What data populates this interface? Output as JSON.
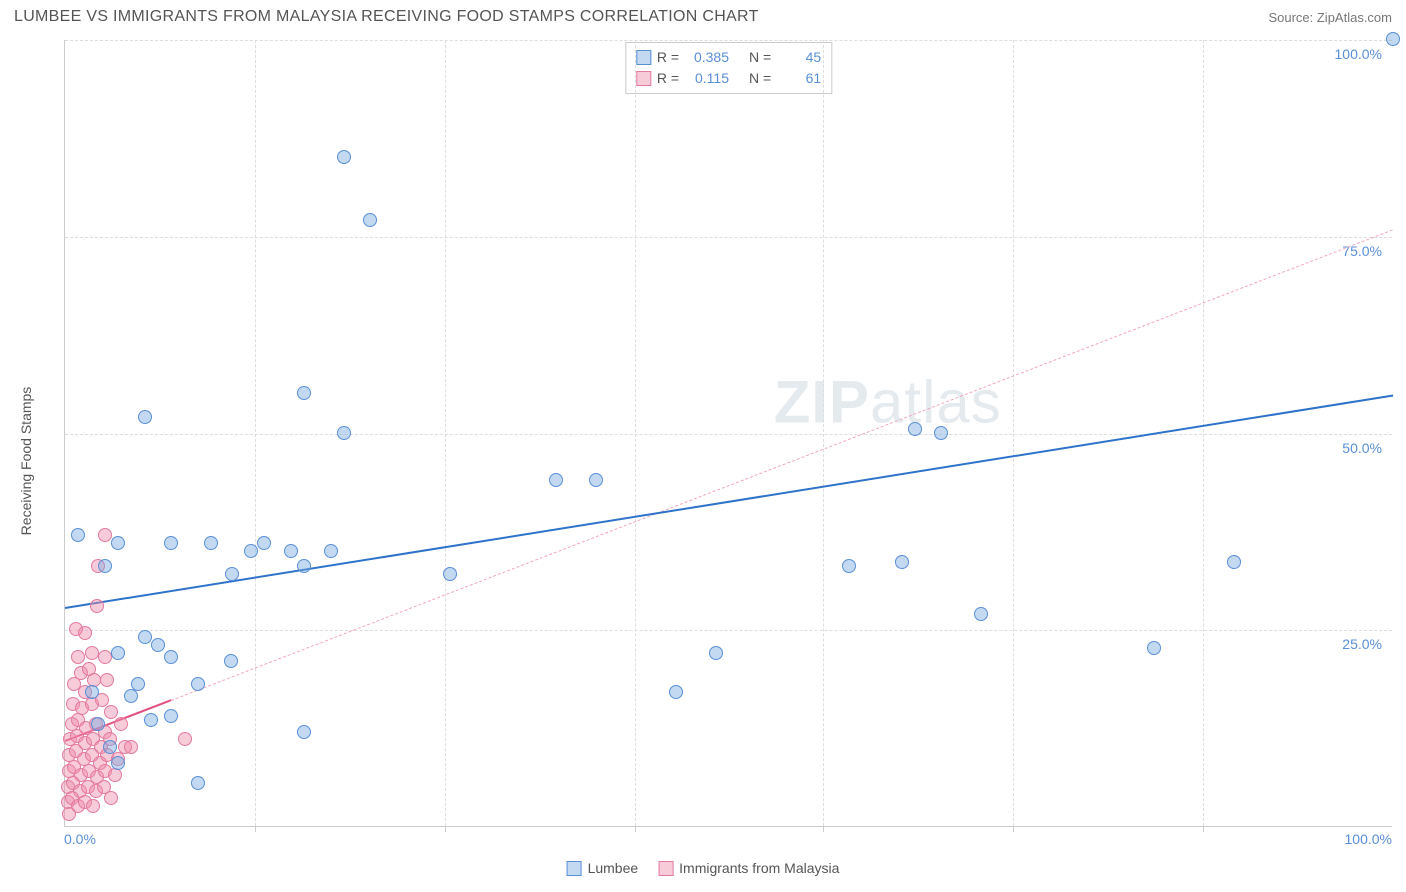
{
  "header": {
    "title": "LUMBEE VS IMMIGRANTS FROM MALAYSIA RECEIVING FOOD STAMPS CORRELATION CHART",
    "source_prefix": "Source: ",
    "source_name": "ZipAtlas.com"
  },
  "watermark": {
    "bold": "ZIP",
    "light": "atlas"
  },
  "chart": {
    "type": "scatter",
    "y_axis_label": "Receiving Food Stamps",
    "xlim": [
      0,
      100
    ],
    "ylim": [
      0,
      100
    ],
    "y_ticks": [
      {
        "v": 25,
        "label": "25.0%"
      },
      {
        "v": 50,
        "label": "50.0%"
      },
      {
        "v": 75,
        "label": "75.0%"
      },
      {
        "v": 100,
        "label": "100.0%"
      }
    ],
    "x_ticks_minor": [
      14.3,
      28.6,
      42.9,
      57.1,
      71.4,
      85.7
    ],
    "x_tick_labels": [
      {
        "v": 0,
        "label": "0.0%",
        "cls": "left"
      },
      {
        "v": 100,
        "label": "100.0%",
        "cls": "right"
      }
    ],
    "grid_color": "#dddddd",
    "background_color": "#ffffff",
    "series": [
      {
        "name": "Lumbee",
        "marker_fill": "rgba(120, 170, 225, 0.45)",
        "marker_stroke": "#5a8fd6",
        "marker_radius": 7,
        "stats": {
          "R": "0.385",
          "N": "45"
        },
        "trend": {
          "x1": 0,
          "y1": 28,
          "x2": 100,
          "y2": 55,
          "solid_end_x": 100,
          "color": "#2f72c9",
          "width": 2
        },
        "points": [
          [
            100,
            100
          ],
          [
            21,
            85
          ],
          [
            23,
            77
          ],
          [
            18,
            55
          ],
          [
            21,
            50
          ],
          [
            6,
            52
          ],
          [
            64,
            50.5
          ],
          [
            66,
            50
          ],
          [
            37,
            44
          ],
          [
            40,
            44
          ],
          [
            29,
            32
          ],
          [
            4,
            36
          ],
          [
            8,
            36
          ],
          [
            11,
            36
          ],
          [
            14,
            35
          ],
          [
            15,
            36
          ],
          [
            17,
            35
          ],
          [
            18,
            33
          ],
          [
            20,
            35
          ],
          [
            12.6,
            32
          ],
          [
            88,
            33.5
          ],
          [
            59,
            33
          ],
          [
            63,
            33.5
          ],
          [
            69,
            27
          ],
          [
            82,
            22.6
          ],
          [
            46,
            17
          ],
          [
            49,
            22
          ],
          [
            4,
            22
          ],
          [
            6,
            24
          ],
          [
            7,
            23
          ],
          [
            8,
            21.5
          ],
          [
            10,
            18
          ],
          [
            2,
            17
          ],
          [
            2.5,
            13
          ],
          [
            5,
            16.5
          ],
          [
            6.5,
            13.5
          ],
          [
            8,
            14
          ],
          [
            18,
            12
          ],
          [
            10,
            5.5
          ],
          [
            1,
            37
          ],
          [
            3,
            33
          ],
          [
            5.5,
            18
          ],
          [
            12.5,
            21
          ],
          [
            3.4,
            10
          ],
          [
            4,
            8
          ]
        ]
      },
      {
        "name": "Immigrants from Malaysia",
        "marker_fill": "rgba(240, 140, 170, 0.45)",
        "marker_stroke": "#e37aa0",
        "marker_radius": 7,
        "stats": {
          "R": "0.115",
          "N": "61"
        },
        "trend": {
          "x1": 0,
          "y1": 11,
          "x2": 100,
          "y2": 76,
          "solid_end_x": 8,
          "color": "#e05080",
          "dash_color": "#f0a8bd",
          "width": 2
        },
        "points": [
          [
            3,
            37
          ],
          [
            2.5,
            33
          ],
          [
            0.8,
            25
          ],
          [
            1.5,
            24.5
          ],
          [
            2.4,
            28
          ],
          [
            1,
            21.5
          ],
          [
            2,
            22
          ],
          [
            3,
            21.5
          ],
          [
            1.2,
            19.5
          ],
          [
            1.8,
            20
          ],
          [
            0.7,
            18
          ],
          [
            1.5,
            17
          ],
          [
            2.2,
            18.5
          ],
          [
            3.2,
            18.5
          ],
          [
            0.6,
            15.5
          ],
          [
            1.3,
            15
          ],
          [
            2,
            15.5
          ],
          [
            2.8,
            16
          ],
          [
            3.5,
            14.5
          ],
          [
            0.5,
            13
          ],
          [
            1,
            13.5
          ],
          [
            1.6,
            12.5
          ],
          [
            2.3,
            13
          ],
          [
            3,
            12
          ],
          [
            4.2,
            13
          ],
          [
            0.4,
            11
          ],
          [
            0.9,
            11.5
          ],
          [
            1.5,
            10.5
          ],
          [
            2.1,
            11
          ],
          [
            2.7,
            10
          ],
          [
            3.4,
            11
          ],
          [
            4.5,
            10
          ],
          [
            0.3,
            9
          ],
          [
            0.8,
            9.5
          ],
          [
            1.4,
            8.5
          ],
          [
            2,
            9
          ],
          [
            2.6,
            8
          ],
          [
            3.2,
            9
          ],
          [
            4,
            8.5
          ],
          [
            5,
            10
          ],
          [
            0.3,
            7
          ],
          [
            0.7,
            7.5
          ],
          [
            1.2,
            6.5
          ],
          [
            1.8,
            7
          ],
          [
            2.4,
            6.2
          ],
          [
            3,
            7
          ],
          [
            3.8,
            6.5
          ],
          [
            0.2,
            5
          ],
          [
            0.6,
            5.5
          ],
          [
            1.1,
            4.5
          ],
          [
            1.7,
            5
          ],
          [
            2.3,
            4.5
          ],
          [
            2.9,
            5
          ],
          [
            3.5,
            3.5
          ],
          [
            0.2,
            3
          ],
          [
            0.5,
            3.5
          ],
          [
            1,
            2.5
          ],
          [
            1.5,
            3
          ],
          [
            2.1,
            2.5
          ],
          [
            0.3,
            1.5
          ],
          [
            9,
            11
          ]
        ]
      }
    ],
    "stats_legend": {
      "R_label": "R =",
      "N_label": "N ="
    }
  }
}
